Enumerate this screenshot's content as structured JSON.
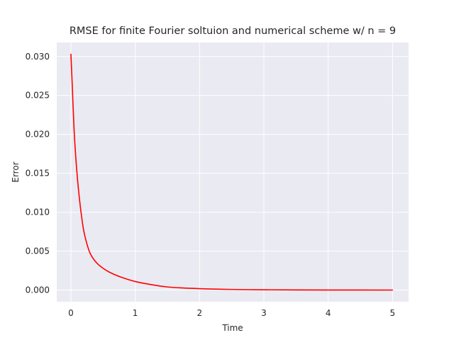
{
  "chart_data": {
    "type": "line",
    "title": "RMSE for finite Fourier soltuion and numerical scheme w/ n = 9",
    "xlabel": "Time",
    "ylabel": "Error",
    "xlim": [
      -0.22,
      5.25
    ],
    "ylim": [
      -0.0015,
      0.0318
    ],
    "xticks": [
      0,
      1,
      2,
      3,
      4,
      5
    ],
    "xtick_labels": [
      "0",
      "1",
      "2",
      "3",
      "4",
      "5"
    ],
    "yticks": [
      0.0,
      0.005,
      0.01,
      0.015,
      0.02,
      0.025,
      0.03
    ],
    "ytick_labels": [
      "0.000",
      "0.005",
      "0.010",
      "0.015",
      "0.020",
      "0.025",
      "0.030"
    ],
    "grid": true,
    "background_color": "#eaeaf2",
    "grid_color": "#ffffff",
    "series": [
      {
        "color": "#ff0000",
        "x": [
          0,
          0.02,
          0.05,
          0.1,
          0.15,
          0.2,
          0.25,
          0.3,
          0.4,
          0.5,
          0.6,
          0.8,
          1.0,
          1.25,
          1.5,
          2.0,
          2.5,
          3.0,
          3.5,
          4.0,
          4.5,
          5.0
        ],
        "y": [
          0.0303,
          0.0265,
          0.0205,
          0.0145,
          0.0105,
          0.0076,
          0.0059,
          0.0047,
          0.0035,
          0.0028,
          0.0023,
          0.0016,
          0.0011,
          0.0007,
          0.0004,
          0.00018,
          8e-05,
          4e-05,
          2e-05,
          1e-05,
          5e-06,
          2e-06
        ]
      }
    ]
  }
}
